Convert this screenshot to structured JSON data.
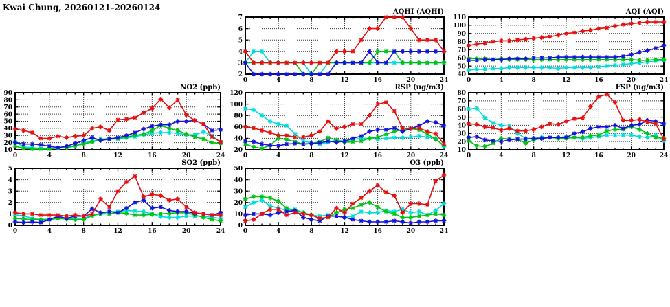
{
  "page_title": "Kwai Chung, 20260121–20260124",
  "colors": {
    "red": "#e60f0f",
    "blue": "#1414d8",
    "green": "#00c414",
    "cyan": "#00dcdc",
    "grid": "#3c3c3c",
    "axis": "#000000",
    "background": "#ffffff"
  },
  "chart_data": [
    {
      "id": "aqhi",
      "title": "AQHI (AQHI)",
      "type": "line",
      "x_range": [
        0,
        24
      ],
      "x_major": 4,
      "x_minor": 1,
      "ylim": [
        2,
        7
      ],
      "ystep": 1,
      "grid": true,
      "legend": "none",
      "series": [
        {
          "name": "cyan",
          "color_key": "cyan",
          "values": [
            3,
            4,
            4,
            3,
            3,
            3,
            3,
            3,
            2,
            2,
            3,
            3,
            3,
            3,
            3,
            3,
            3,
            3,
            3,
            3,
            3,
            3,
            3,
            3,
            3
          ]
        },
        {
          "name": "green",
          "color_key": "green",
          "values": [
            3,
            3,
            3,
            3,
            3,
            3,
            3,
            2,
            2,
            3,
            3,
            3,
            3,
            3,
            3,
            3,
            4,
            4,
            4,
            3,
            3,
            3,
            3,
            3,
            3
          ]
        },
        {
          "name": "blue",
          "color_key": "blue",
          "values": [
            3,
            2,
            2,
            2,
            2,
            2,
            2,
            2,
            2,
            2,
            2,
            3,
            3,
            3,
            3,
            4,
            3,
            3,
            4,
            4,
            4,
            4,
            4,
            4,
            4
          ]
        },
        {
          "name": "red",
          "color_key": "red",
          "values": [
            4,
            3,
            3,
            3,
            3,
            3,
            3,
            3,
            3,
            3,
            3,
            4,
            4,
            4,
            5,
            6,
            6,
            7,
            7,
            7,
            6,
            5,
            5,
            5,
            4
          ]
        }
      ]
    },
    {
      "id": "aqi",
      "title": "AQI (AQI)",
      "type": "line",
      "x_range": [
        0,
        24
      ],
      "x_major": 4,
      "x_minor": 1,
      "ylim": [
        40,
        110
      ],
      "ystep": 10,
      "grid": true,
      "legend": "none",
      "series": [
        {
          "name": "cyan",
          "color_key": "cyan",
          "values": [
            45,
            46,
            46,
            47,
            47,
            48,
            48,
            48,
            48,
            48,
            48,
            47,
            48,
            48,
            48,
            48,
            49,
            50,
            51,
            52,
            53,
            54,
            55,
            56,
            57
          ]
        },
        {
          "name": "green",
          "color_key": "green",
          "values": [
            59,
            59,
            59,
            58,
            59,
            58,
            58,
            58,
            58,
            58,
            58,
            58,
            58,
            58,
            58,
            58,
            58,
            58,
            58,
            58,
            58,
            57,
            57,
            58,
            58
          ]
        },
        {
          "name": "blue",
          "color_key": "blue",
          "values": [
            57,
            57,
            58,
            58,
            58,
            59,
            59,
            59,
            60,
            60,
            60,
            61,
            61,
            61,
            61,
            61,
            61,
            61,
            61,
            62,
            64,
            67,
            69,
            72,
            75
          ]
        },
        {
          "name": "red",
          "color_key": "red",
          "values": [
            75,
            77,
            78,
            80,
            81,
            81,
            82,
            83,
            84,
            85,
            86,
            88,
            90,
            91,
            93,
            94,
            96,
            97,
            99,
            101,
            102,
            103,
            104,
            104,
            104
          ]
        }
      ]
    },
    {
      "id": "no2",
      "title": "NO2 (ppb)",
      "type": "line",
      "x_range": [
        0,
        24
      ],
      "x_major": 4,
      "x_minor": 1,
      "ylim": [
        10,
        90
      ],
      "ystep": 10,
      "grid": true,
      "legend": "none",
      "series": [
        {
          "name": "cyan",
          "color_key": "cyan",
          "values": [
            21,
            14,
            13,
            12,
            12,
            12,
            13,
            15,
            20,
            22,
            25,
            25,
            25,
            27,
            28,
            31,
            33,
            34,
            34,
            33,
            31,
            31,
            35,
            30,
            20
          ]
        },
        {
          "name": "green",
          "color_key": "green",
          "values": [
            15,
            12,
            11,
            11,
            11,
            13,
            13,
            16,
            18,
            21,
            24,
            26,
            26,
            28,
            30,
            32,
            37,
            44,
            40,
            37,
            32,
            28,
            25,
            20,
            19
          ]
        },
        {
          "name": "blue",
          "color_key": "blue",
          "values": [
            20,
            18,
            18,
            17,
            15,
            13,
            15,
            19,
            23,
            27,
            23,
            25,
            27,
            30,
            34,
            39,
            43,
            45,
            45,
            50,
            50,
            51,
            46,
            37,
            38
          ]
        },
        {
          "name": "red",
          "color_key": "red",
          "values": [
            39,
            37,
            34,
            26,
            26,
            29,
            27,
            29,
            30,
            40,
            42,
            37,
            52,
            53,
            55,
            62,
            68,
            81,
            69,
            80,
            59,
            51,
            46,
            28,
            21
          ]
        }
      ]
    },
    {
      "id": "rsp",
      "title": "RSP (ug/m3)",
      "type": "line",
      "x_range": [
        0,
        24
      ],
      "x_major": 4,
      "x_minor": 1,
      "ylim": [
        20,
        120
      ],
      "ystep": 20,
      "grid": true,
      "legend": "none",
      "series": [
        {
          "name": "cyan",
          "color_key": "cyan",
          "values": [
            92,
            90,
            80,
            70,
            65,
            62,
            48,
            35,
            32,
            30,
            33,
            37,
            35,
            38,
            40,
            40,
            38,
            40,
            41,
            41,
            42,
            44,
            42,
            40,
            25
          ]
        },
        {
          "name": "green",
          "color_key": "green",
          "values": [
            30,
            25,
            22,
            28,
            40,
            38,
            34,
            30,
            31,
            34,
            41,
            37,
            33,
            34,
            35,
            40,
            42,
            47,
            52,
            55,
            57,
            55,
            48,
            38,
            28
          ]
        },
        {
          "name": "blue",
          "color_key": "blue",
          "values": [
            35,
            34,
            30,
            28,
            27,
            30,
            31,
            30,
            31,
            32,
            35,
            33,
            35,
            40,
            44,
            52,
            55,
            55,
            58,
            52,
            57,
            62,
            70,
            68,
            62
          ]
        },
        {
          "name": "red",
          "color_key": "red",
          "values": [
            60,
            58,
            54,
            50,
            45,
            45,
            42,
            42,
            45,
            52,
            70,
            57,
            60,
            65,
            65,
            80,
            100,
            103,
            88,
            58,
            57,
            58,
            52,
            48,
            30
          ]
        }
      ]
    },
    {
      "id": "fsp",
      "title": "FSP (ug/m3)",
      "type": "line",
      "x_range": [
        0,
        24
      ],
      "x_major": 4,
      "x_minor": 1,
      "ylim": [
        10,
        80
      ],
      "ystep": 10,
      "grid": true,
      "legend": "none",
      "series": [
        {
          "name": "cyan",
          "color_key": "cyan",
          "values": [
            60,
            61,
            49,
            43,
            40,
            39,
            30,
            24,
            24,
            25,
            25,
            25,
            26,
            25,
            24,
            25,
            26,
            28,
            28,
            28,
            28,
            26,
            25,
            28,
            21
          ]
        },
        {
          "name": "green",
          "color_key": "green",
          "values": [
            21,
            15,
            14,
            18,
            24,
            23,
            23,
            18,
            22,
            24,
            25,
            24,
            24,
            25,
            25,
            27,
            28,
            33,
            35,
            35,
            38,
            35,
            30,
            25,
            24
          ]
        },
        {
          "name": "blue",
          "color_key": "blue",
          "values": [
            25,
            26,
            22,
            21,
            20,
            22,
            23,
            23,
            24,
            24,
            25,
            25,
            25,
            30,
            32,
            36,
            38,
            38,
            40,
            36,
            40,
            41,
            46,
            45,
            42
          ]
        },
        {
          "name": "red",
          "color_key": "red",
          "values": [
            42,
            41,
            38,
            37,
            34,
            36,
            33,
            33,
            35,
            38,
            42,
            41,
            45,
            48,
            49,
            63,
            75,
            78,
            68,
            46,
            46,
            47,
            44,
            42,
            23
          ]
        }
      ]
    },
    {
      "id": "so2",
      "title": "SO2 (ppb)",
      "type": "line",
      "x_range": [
        0,
        24
      ],
      "x_major": 4,
      "x_minor": 1,
      "ylim": [
        0,
        5
      ],
      "ystep": 1,
      "grid": true,
      "legend": "none",
      "series": [
        {
          "name": "cyan",
          "color_key": "cyan",
          "values": [
            0.9,
            0.85,
            0.6,
            0.5,
            0.55,
            0.7,
            0.6,
            0.6,
            0.6,
            0.9,
            1.0,
            1.2,
            1.2,
            1.3,
            1.25,
            1.2,
            1.0,
            0.75,
            0.7,
            0.7,
            0.8,
            0.8,
            0.8,
            0.7,
            0.6
          ]
        },
        {
          "name": "green",
          "color_key": "green",
          "values": [
            0.6,
            0.55,
            0.5,
            0.5,
            0.5,
            0.6,
            0.55,
            0.5,
            0.5,
            0.85,
            1.0,
            1.0,
            1.1,
            1.05,
            0.9,
            0.9,
            0.95,
            1.0,
            1.05,
            1.1,
            1.1,
            0.9,
            0.7,
            0.5,
            0.4
          ]
        },
        {
          "name": "blue",
          "color_key": "blue",
          "values": [
            0.3,
            0.25,
            0.3,
            0.25,
            0.5,
            0.8,
            0.6,
            0.8,
            0.8,
            1.45,
            1.1,
            1.2,
            1.1,
            1.5,
            2.0,
            2.2,
            1.5,
            1.6,
            1.3,
            1.2,
            1.2,
            1.05,
            1.0,
            0.9,
            1.1
          ]
        },
        {
          "name": "red",
          "color_key": "red",
          "values": [
            1.1,
            1.0,
            1.0,
            0.9,
            0.9,
            0.9,
            0.8,
            0.9,
            0.8,
            1.0,
            2.3,
            1.6,
            3.0,
            3.8,
            4.3,
            2.5,
            2.7,
            2.6,
            2.2,
            2.3,
            1.6,
            1.1,
            1.0,
            0.9,
            0.9
          ]
        }
      ]
    },
    {
      "id": "o3",
      "title": "O3 (ppb)",
      "type": "line",
      "x_range": [
        0,
        24
      ],
      "x_major": 4,
      "x_minor": 1,
      "ylim": [
        0,
        50
      ],
      "ystep": 10,
      "grid": true,
      "legend": "none",
      "series": [
        {
          "name": "cyan",
          "color_key": "cyan",
          "values": [
            16,
            20,
            22,
            17,
            15,
            13,
            14,
            11,
            9,
            8,
            9,
            8,
            7,
            8,
            12,
            11,
            11,
            13,
            12,
            14,
            11,
            12,
            9,
            13,
            19
          ]
        },
        {
          "name": "green",
          "color_key": "green",
          "values": [
            23,
            25,
            25,
            24,
            21,
            15,
            13,
            11,
            9,
            6,
            7,
            11,
            14,
            15,
            18,
            20,
            16,
            12,
            10,
            7,
            7,
            8,
            9,
            10,
            9
          ]
        },
        {
          "name": "blue",
          "color_key": "blue",
          "values": [
            9,
            10,
            10,
            9,
            11,
            12,
            13,
            7,
            5,
            4,
            8,
            8,
            7,
            5,
            4,
            3,
            3,
            3,
            4,
            3,
            2,
            3,
            3,
            4,
            4
          ]
        },
        {
          "name": "red",
          "color_key": "red",
          "values": [
            4,
            5,
            10,
            14,
            14,
            9,
            11,
            10,
            9,
            6,
            7,
            15,
            11,
            19,
            24,
            30,
            35,
            29,
            26,
            11,
            19,
            19,
            18,
            39,
            44
          ]
        }
      ]
    }
  ]
}
